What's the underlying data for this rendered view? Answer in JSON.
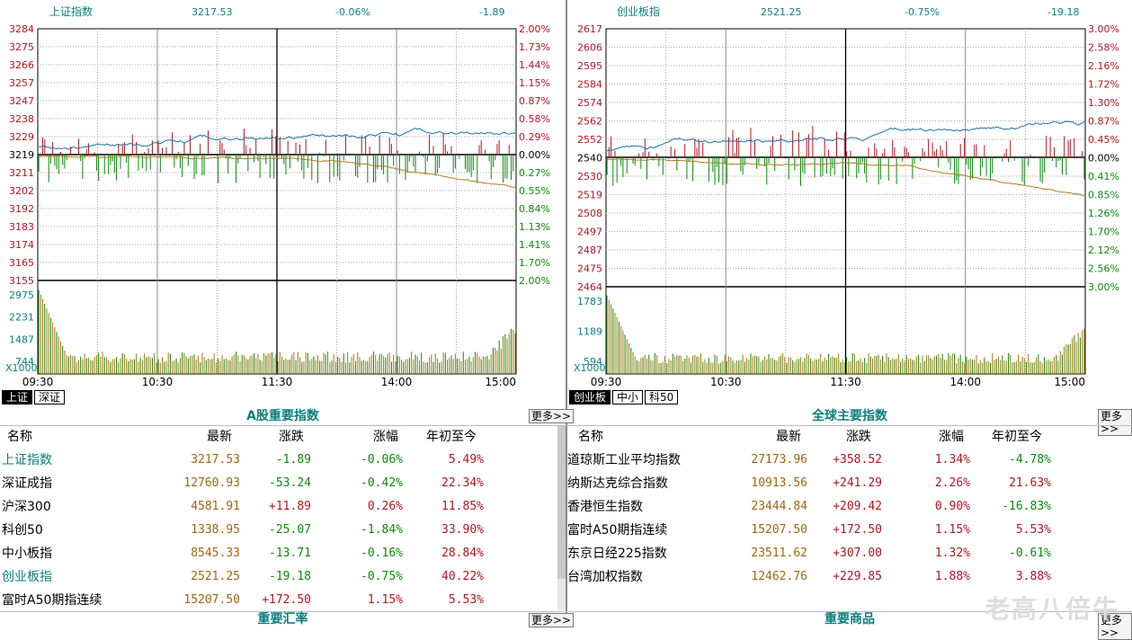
{
  "left_chart": {
    "name": "上证指数",
    "price": "3217.53",
    "pct": "-0.06%",
    "change": "-1.89",
    "y_ticks": [
      "3284",
      "3275",
      "3266",
      "3257",
      "3247",
      "3238",
      "3229",
      "3219",
      "3211",
      "3202",
      "3192",
      "3183",
      "3174",
      "3165",
      "3155"
    ],
    "pct_ticks": [
      "2.00%",
      "1.73%",
      "1.44%",
      "1.15%",
      "0.87%",
      "0.58%",
      "0.29%",
      "0.00%",
      "0.27%",
      "0.55%",
      "0.84%",
      "1.13%",
      "1.41%",
      "1.70%",
      "2.00%"
    ],
    "vol_ticks": [
      "2975",
      "2231",
      "1487",
      "744"
    ],
    "vol_unit": "X1000",
    "time_ticks": [
      "09:30",
      "10:30",
      "11:30",
      "14:00",
      "15:00"
    ],
    "tabs": [
      "上证",
      "深证"
    ]
  },
  "right_chart": {
    "name": "创业板指",
    "price": "2521.25",
    "pct": "-0.75%",
    "change": "-19.18",
    "y_ticks": [
      "2617",
      "2606",
      "2595",
      "2584",
      "2574",
      "2562",
      "2552",
      "2540",
      "2530",
      "2519",
      "2508",
      "2497",
      "2487",
      "2475",
      "2464"
    ],
    "pct_ticks": [
      "3.00%",
      "2.58%",
      "2.16%",
      "1.72%",
      "1.30%",
      "0.87%",
      "0.45%",
      "0.00%",
      "0.41%",
      "0.85%",
      "1.26%",
      "1.70%",
      "2.12%",
      "2.56%",
      "3.00%"
    ],
    "vol_ticks": [
      "1783",
      "1189",
      "594"
    ],
    "vol_unit": "X1000",
    "time_ticks": [
      "09:30",
      "10:30",
      "11:30",
      "14:00",
      "15:00"
    ],
    "tabs": [
      "创业板",
      "中小",
      "科50"
    ]
  },
  "a_share": {
    "title": "A股重要指数",
    "more": "更多>>",
    "headers": [
      "名称",
      "最新",
      "涨跌",
      "涨幅",
      "年初至今"
    ],
    "rows": [
      {
        "name": "上证指数",
        "last": "3217.53",
        "chg": "-1.89",
        "pct": "-0.06%",
        "ytd": "5.49%"
      },
      {
        "name": "深证成指",
        "last": "12760.93",
        "chg": "-53.24",
        "pct": "-0.42%",
        "ytd": "22.34%"
      },
      {
        "name": "沪深300",
        "last": "4581.91",
        "chg": "+11.89",
        "pct": "0.26%",
        "ytd": "11.85%"
      },
      {
        "name": "科创50",
        "last": "1338.95",
        "chg": "-25.07",
        "pct": "-1.84%",
        "ytd": "33.90%"
      },
      {
        "name": "中小板指",
        "last": "8545.33",
        "chg": "-13.71",
        "pct": "-0.16%",
        "ytd": "28.84%"
      },
      {
        "name": "创业板指",
        "last": "2521.25",
        "chg": "-19.18",
        "pct": "-0.75%",
        "ytd": "40.22%"
      },
      {
        "name": "富时A50期指连续",
        "last": "15207.50",
        "chg": "+172.50",
        "pct": "1.15%",
        "ytd": "5.53%"
      }
    ],
    "next_title": "重要汇率"
  },
  "global": {
    "title": "全球主要指数",
    "more": "更多>>",
    "headers": [
      "名称",
      "最新",
      "涨跌",
      "涨幅",
      "年初至今"
    ],
    "rows": [
      {
        "name": "道琼斯工业平均指数",
        "last": "27173.96",
        "chg": "+358.52",
        "pct": "1.34%",
        "ytd": "-4.78%"
      },
      {
        "name": "纳斯达克综合指数",
        "last": "10913.56",
        "chg": "+241.29",
        "pct": "2.26%",
        "ytd": "21.63%"
      },
      {
        "name": "香港恒生指数",
        "last": "23444.84",
        "chg": "+209.42",
        "pct": "0.90%",
        "ytd": "-16.83%"
      },
      {
        "name": "富时A50期指连续",
        "last": "15207.50",
        "chg": "+172.50",
        "pct": "1.15%",
        "ytd": "5.53%"
      },
      {
        "name": "东京日经225指数",
        "last": "23511.62",
        "chg": "+307.00",
        "pct": "1.32%",
        "ytd": "-0.61%"
      },
      {
        "name": "台湾加权指数",
        "last": "12462.76",
        "chg": "+229.85",
        "pct": "1.88%",
        "ytd": "3.88%"
      }
    ],
    "next_title": "重要商品"
  },
  "watermark": "老高八倍牛",
  "colors": {
    "up": "#b4141e",
    "down": "#0a8a0a",
    "index_line": "#1f6fa8",
    "avg_line": "#b07a1e",
    "volume": "#a0780e",
    "label_cyan": "#0d7f7f"
  }
}
